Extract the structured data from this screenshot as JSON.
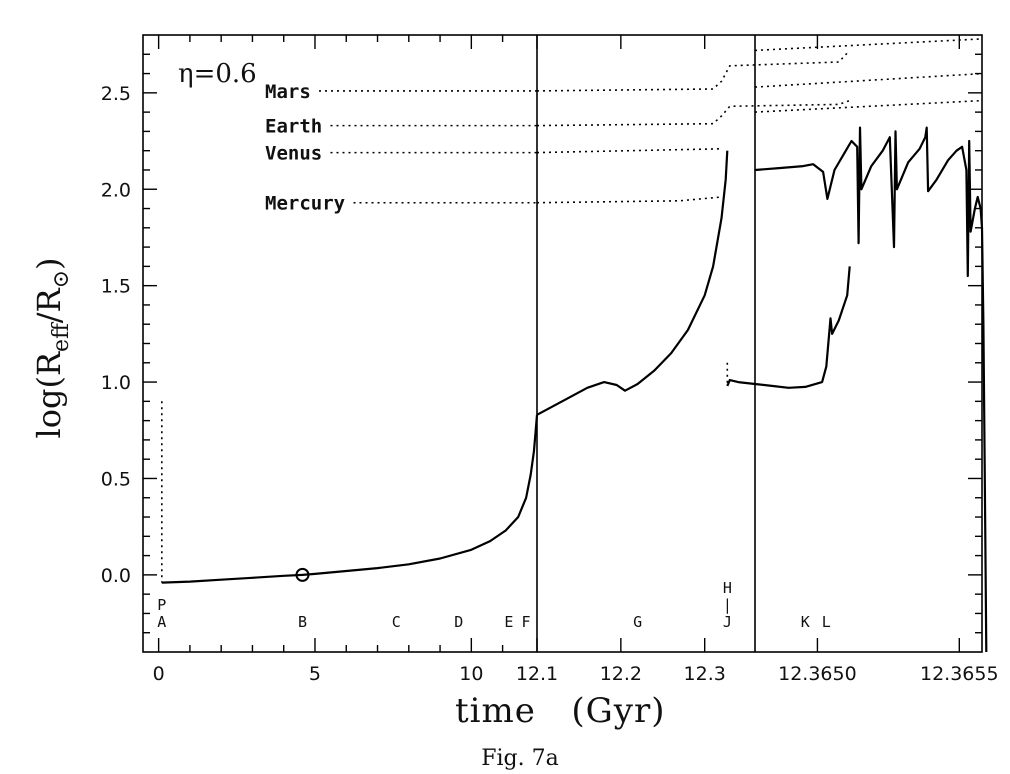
{
  "caption": "Fig. 7a",
  "chart_data": {
    "type": "line",
    "annotation": "η=0.6",
    "xlabel": "time   (Gyr)",
    "ylabel": "log(R_eff/R_⊙)",
    "ylim": [
      -0.4,
      2.8
    ],
    "yticks": [
      {
        "value": 0.0,
        "label": "0.0"
      },
      {
        "value": 0.5,
        "label": "0.5"
      },
      {
        "value": 1.0,
        "label": "1.0"
      },
      {
        "value": 1.5,
        "label": "1.5"
      },
      {
        "value": 2.0,
        "label": "2.0"
      },
      {
        "value": 2.5,
        "label": "2.5"
      }
    ],
    "panels": [
      {
        "xlim": [
          -0.5,
          12.1
        ],
        "xticks": [
          {
            "value": 0,
            "label": "0"
          },
          {
            "value": 5,
            "label": "5"
          },
          {
            "value": 10,
            "label": "10"
          },
          {
            "value": 12.1,
            "label": "12.1"
          }
        ],
        "minor_ticks": [
          1,
          2,
          3,
          4,
          6,
          7,
          8,
          9,
          11
        ],
        "curve": [
          [
            0.1,
            -0.04
          ],
          [
            1,
            -0.035
          ],
          [
            2,
            -0.025
          ],
          [
            3,
            -0.015
          ],
          [
            4,
            -0.005
          ],
          [
            4.6,
            0.0
          ],
          [
            5,
            0.005
          ],
          [
            6,
            0.02
          ],
          [
            7,
            0.035
          ],
          [
            8,
            0.055
          ],
          [
            9,
            0.085
          ],
          [
            10,
            0.13
          ],
          [
            10.6,
            0.175
          ],
          [
            11.1,
            0.23
          ],
          [
            11.5,
            0.3
          ],
          [
            11.75,
            0.4
          ],
          [
            11.9,
            0.52
          ],
          [
            12.0,
            0.64
          ],
          [
            12.05,
            0.73
          ],
          [
            12.1,
            0.83
          ]
        ],
        "dotted_segments": [
          [
            [
              0.1,
              0.9
            ],
            [
              0.1,
              -0.04
            ]
          ]
        ],
        "marker": {
          "x": 4.6,
          "y": 0.0,
          "shape": "circle"
        },
        "phase_labels": [
          {
            "x": 0.1,
            "label": "P",
            "row": 1
          },
          {
            "x": 0.1,
            "label": "A",
            "row": 0
          },
          {
            "x": 4.6,
            "label": "B",
            "row": 0
          },
          {
            "x": 7.6,
            "label": "C",
            "row": 0
          },
          {
            "x": 9.6,
            "label": "D",
            "row": 0
          },
          {
            "x": 11.2,
            "label": "E",
            "row": 0
          },
          {
            "x": 11.75,
            "label": "F",
            "row": 0
          }
        ],
        "planets": [
          {
            "name": "Mars",
            "y": 2.51
          },
          {
            "name": "Earth",
            "y": 2.33
          },
          {
            "name": "Venus",
            "y": 2.19
          },
          {
            "name": "Mercury",
            "y": 1.93
          }
        ]
      },
      {
        "xlim": [
          12.1,
          12.36
        ],
        "xticks": [
          {
            "value": 12.2,
            "label": "12.2"
          },
          {
            "value": 12.3,
            "label": "12.3"
          }
        ],
        "curve_segments": [
          [
            [
              12.1,
              0.83
            ],
            [
              12.13,
              0.9
            ],
            [
              12.16,
              0.97
            ],
            [
              12.18,
              1.0
            ],
            [
              12.195,
              0.985
            ],
            [
              12.205,
              0.955
            ],
            [
              12.22,
              0.99
            ],
            [
              12.24,
              1.06
            ],
            [
              12.26,
              1.15
            ],
            [
              12.28,
              1.27
            ],
            [
              12.3,
              1.45
            ],
            [
              12.31,
              1.6
            ],
            [
              12.32,
              1.85
            ],
            [
              12.325,
              2.05
            ],
            [
              12.327,
              2.2
            ]
          ],
          [
            [
              12.327,
              0.98
            ],
            [
              12.33,
              1.01
            ],
            [
              12.34,
              1.0
            ],
            [
              12.36,
              0.99
            ],
            [
              12.38,
              0.98
            ],
            [
              12.4,
              0.97
            ],
            [
              12.42,
              0.975
            ],
            [
              12.44,
              1.0
            ],
            [
              12.445,
              1.08
            ],
            [
              12.45,
              1.33
            ],
            [
              12.452,
              1.25
            ],
            [
              12.46,
              1.32
            ],
            [
              12.47,
              1.45
            ],
            [
              12.473,
              1.6
            ]
          ]
        ],
        "x_compression_note": "",
        "dotted_segments": [
          [
            [
              12.327,
              1.1
            ],
            [
              12.327,
              0.98
            ]
          ],
          [
            [
              12.1,
              1.93
            ],
            [
              12.27,
              1.94
            ],
            [
              12.32,
              1.96
            ]
          ],
          [
            [
              12.1,
              2.19
            ],
            [
              12.32,
              2.21
            ]
          ],
          [
            [
              12.1,
              2.33
            ],
            [
              12.31,
              2.34
            ],
            [
              12.32,
              2.38
            ],
            [
              12.33,
              2.43
            ],
            [
              12.46,
              2.44
            ],
            [
              12.473,
              2.46
            ]
          ],
          [
            [
              12.1,
              2.51
            ],
            [
              12.31,
              2.52
            ],
            [
              12.32,
              2.56
            ],
            [
              12.33,
              2.64
            ],
            [
              12.46,
              2.66
            ],
            [
              12.473,
              2.72
            ]
          ]
        ],
        "phase_labels": [
          {
            "x": 12.22,
            "label": "G",
            "row": 0
          },
          {
            "x": 12.327,
            "label": "H",
            "row": 2
          },
          {
            "x": 12.327,
            "label": "|",
            "row": 1
          },
          {
            "x": 12.327,
            "label": "J",
            "row": 0
          },
          {
            "x": 12.42,
            "label": "K",
            "row": 0
          },
          {
            "x": 12.445,
            "label": "L",
            "row": 0
          }
        ]
      },
      {
        "xlim": [
          12.36478,
          12.36558
        ],
        "xticks": [
          {
            "value": 12.365,
            "label": "12.3650"
          },
          {
            "value": 12.3655,
            "label": "12.3655"
          }
        ],
        "curve_segments": [
          [
            [
              12.36478,
              2.1
            ],
            [
              12.36487,
              2.11
            ],
            [
              12.36495,
              2.12
            ],
            [
              12.364985,
              2.13
            ],
            [
              12.36502,
              2.09
            ],
            [
              12.365035,
              1.95
            ],
            [
              12.36506,
              2.1
            ],
            [
              12.3651,
              2.2
            ],
            [
              12.36512,
              2.25
            ],
            [
              12.36514,
              2.22
            ],
            [
              12.365145,
              1.72
            ],
            [
              12.36515,
              2.32
            ],
            [
              12.365155,
              2.0
            ],
            [
              12.36519,
              2.12
            ],
            [
              12.36523,
              2.2
            ],
            [
              12.365255,
              2.27
            ],
            [
              12.36527,
              1.7
            ],
            [
              12.365275,
              2.3
            ],
            [
              12.36528,
              2.0
            ],
            [
              12.36532,
              2.14
            ],
            [
              12.36536,
              2.21
            ],
            [
              12.36538,
              2.27
            ],
            [
              12.365385,
              2.32
            ],
            [
              12.36539,
              1.99
            ],
            [
              12.36542,
              2.05
            ],
            [
              12.36546,
              2.15
            ],
            [
              12.36549,
              2.2
            ],
            [
              12.36551,
              2.22
            ],
            [
              12.365525,
              2.1
            ],
            [
              12.36553,
              1.55
            ],
            [
              12.365535,
              2.25
            ],
            [
              12.36554,
              1.78
            ],
            [
              12.365555,
              1.9
            ],
            [
              12.365565,
              1.96
            ],
            [
              12.365575,
              1.9
            ],
            [
              12.36558,
              1.8
            ],
            [
              12.365585,
              1.3
            ],
            [
              12.36559,
              0.5
            ],
            [
              12.365595,
              -0.4
            ]
          ]
        ],
        "dotted_segments": [
          [
            [
              12.36478,
              2.4
            ],
            [
              12.36558,
              2.46
            ]
          ],
          [
            [
              12.36478,
              2.53
            ],
            [
              12.36558,
              2.6
            ]
          ],
          [
            [
              12.36478,
              2.72
            ],
            [
              12.36558,
              2.78
            ]
          ]
        ]
      }
    ]
  }
}
